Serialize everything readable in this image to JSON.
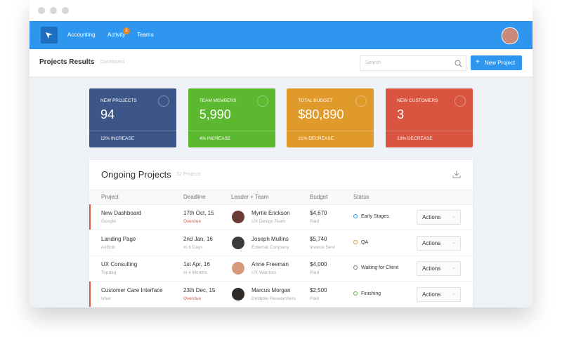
{
  "nav": {
    "links": [
      "Accounting",
      "Activity",
      "Teams"
    ],
    "badge": "2"
  },
  "header": {
    "title": "Projects Results",
    "breadcrumb": "Dashboard",
    "search_placeholder": "Search",
    "button": "New Project"
  },
  "stats": [
    {
      "label": "NEW PROJECTS",
      "value": "94",
      "change": "13% INCREASE",
      "color": "#3c5688"
    },
    {
      "label": "TEAM MEMBERS",
      "value": "5,990",
      "change": "4% INCREASE",
      "color": "#5cb82f"
    },
    {
      "label": "TOTAL BUDGET",
      "value": "$80,890",
      "change": "21% DECREASE",
      "color": "#e09a2c"
    },
    {
      "label": "NEW CUSTOMERS",
      "value": "3",
      "change": "13% DECREASE",
      "color": "#d9553f"
    }
  ],
  "table": {
    "title": "Ongoing Projects",
    "count": "32 Projects",
    "columns": [
      "Project",
      "Deadline",
      "Leader + Team",
      "Budget",
      "Status"
    ],
    "action_label": "Actions",
    "rows": [
      {
        "project": "New Dashboard",
        "client": "Google",
        "deadline": "17th Oct, 15",
        "deadline_note": "Overdue",
        "alert": true,
        "leader": "Myrtie Erickson",
        "team": "UX Design Team",
        "budget": "$4,670",
        "budget_note": "Paid",
        "status": "Early Stages",
        "status_color": "#2f96f0"
      },
      {
        "project": "Landing Page",
        "client": "AirBnb",
        "deadline": "2nd Jan, 16",
        "deadline_note": "In 6 Days",
        "alert": false,
        "leader": "Joseph Mullins",
        "team": "External Company",
        "budget": "$5,740",
        "budget_note": "Invoice Sent",
        "status": "QA",
        "status_color": "#e09a2c"
      },
      {
        "project": "UX Consulting",
        "client": "Topdaq",
        "deadline": "1st Apr, 16",
        "deadline_note": "In 4 Months",
        "alert": false,
        "leader": "Anne Freeman",
        "team": "UX Warriors",
        "budget": "$4,000",
        "budget_note": "Paid",
        "status": "Waiting for Client",
        "status_color": "#777777"
      },
      {
        "project": "Customer Care Interface",
        "client": "Uber",
        "deadline": "23th Dec, 15",
        "deadline_note": "Overdue",
        "alert": true,
        "leader": "Marcus Morgan",
        "team": "Dribbble Researchers",
        "budget": "$2,500",
        "budget_note": "Paid",
        "status": "Finishing",
        "status_color": "#5cb82f"
      }
    ]
  }
}
